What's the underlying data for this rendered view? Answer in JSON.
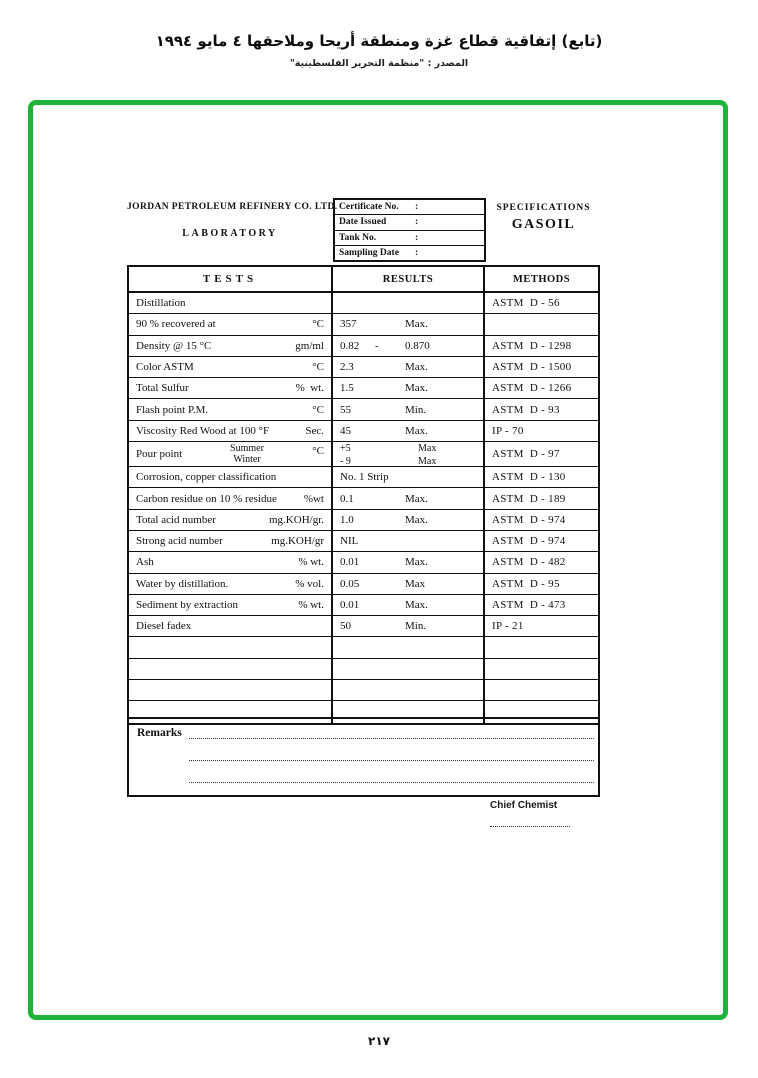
{
  "header": {
    "title_ar": "(تابع) إتفاقية قطاع غزة ومنطقة أريحا وملاحقها ٤ مايو ١٩٩٤",
    "source_ar": "المصدر :  \"منظمة التحرير الفلسطينية\""
  },
  "colors": {
    "frame_green": "#1fb23c"
  },
  "form": {
    "company": "JORDAN PETROLEUM REFINERY CO. LTD.",
    "department": "LABORATORY",
    "certificate_fields": [
      {
        "label": "Certificate No.",
        "sep": ":",
        "value": ""
      },
      {
        "label": "Date Issued",
        "sep": ":",
        "value": ""
      },
      {
        "label": "Tank  No.",
        "sep": ":",
        "value": ""
      },
      {
        "label": "Sampling Date",
        "sep": ":",
        "value": ""
      }
    ],
    "spec_title": "SPECIFICATIONS",
    "spec_product": "GASOIL",
    "table": {
      "headers": [
        "TESTS",
        "RESULTS",
        "METHODS"
      ],
      "rows": [
        {
          "type": "normal",
          "t": "Distillation",
          "u": "",
          "rl": "",
          "rm": "",
          "rc": "",
          "m": "ASTM  D - 56"
        },
        {
          "type": "normal",
          "t": "90 % recovered at",
          "u": "°C",
          "rl": "357",
          "rm": "",
          "rc": "Max.",
          "m": ""
        },
        {
          "type": "normal",
          "t": "Density @ 15 °C",
          "u": "gm/ml",
          "rl": "0.82",
          "rm": "-",
          "rc": "0.870",
          "m": "ASTM  D - 1298"
        },
        {
          "type": "normal",
          "t": "Color ASTM",
          "u": "°C",
          "rl": "2.3",
          "rm": "",
          "rc": "Max.",
          "m": "ASTM  D - 1500"
        },
        {
          "type": "normal",
          "t": "Total Sulfur",
          "u": "%  wt.",
          "rl": "1.5",
          "rm": "",
          "rc": "Max.",
          "m": "ASTM  D - 1266"
        },
        {
          "type": "normal",
          "t": "Flash point P.M.",
          "u": "°C",
          "rl": "55",
          "rm": "",
          "rc": "Min.",
          "m": "ASTM  D - 93"
        },
        {
          "type": "normal",
          "t": "Viscosity Red Wood at 100 °F",
          "u": "Sec.",
          "rl": "45",
          "rm": "",
          "rc": "Max.",
          "m": "IP - 70"
        },
        {
          "type": "double",
          "t": "Pour point",
          "season1": "Summer",
          "season2": "Winter",
          "u": "°C",
          "rl1": "+5",
          "rc1": "Max",
          "rl2": "- 9",
          "rc2": "Max",
          "m": "ASTM  D - 97"
        },
        {
          "type": "normal",
          "t": "Corrosion, copper classification",
          "u": "",
          "rl": "No. 1 Strip",
          "rm": "",
          "rc": "",
          "m": "ASTM  D - 130"
        },
        {
          "type": "normal",
          "t": "Carbon residue on 10 % residue",
          "u": "%wt",
          "rl": "0.1",
          "rm": "",
          "rc": "Max.",
          "m": "ASTM  D - 189"
        },
        {
          "type": "normal",
          "t": "Total acid number",
          "u": "mg.KOH/gr.",
          "rl": "1.0",
          "rm": "",
          "rc": "Max.",
          "m": "ASTM  D - 974"
        },
        {
          "type": "normal",
          "t": "Strong acid number",
          "u": "mg.KOH/gr",
          "rl": "NIL",
          "rm": "",
          "rc": "",
          "m": "ASTM  D - 974"
        },
        {
          "type": "normal",
          "t": "Ash",
          "u": "% wt.",
          "rl": "0.01",
          "rm": "",
          "rc": "Max.",
          "m": "ASTM  D - 482"
        },
        {
          "type": "normal",
          "t": "Water by distillation.",
          "u": "% vol.",
          "rl": "0.05",
          "rm": "",
          "rc": "Max",
          "m": "ASTM  D - 95"
        },
        {
          "type": "normal",
          "t": "Sediment by extraction",
          "u": "% wt.",
          "rl": "0.01",
          "rm": "",
          "rc": "Max.",
          "m": "ASTM  D - 473"
        },
        {
          "type": "normal",
          "t": "Diesel fadex",
          "u": "",
          "rl": "50",
          "rm": "",
          "rc": "Min.",
          "m": "IP - 21"
        },
        {
          "type": "empty"
        },
        {
          "type": "empty"
        },
        {
          "type": "empty"
        },
        {
          "type": "empty"
        }
      ]
    },
    "remarks_label": "Remarks",
    "signature": {
      "label": "Chief Chemist"
    }
  },
  "footer": {
    "page_number": "٢١٧"
  }
}
